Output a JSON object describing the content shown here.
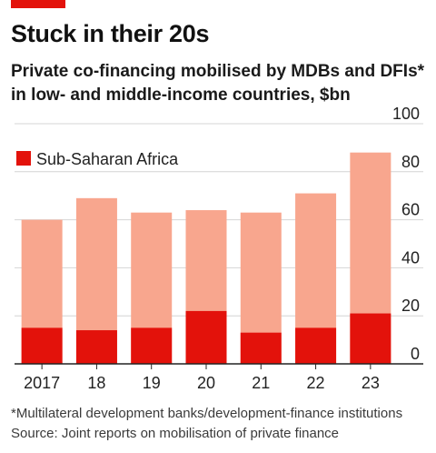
{
  "header": {
    "title": "Stuck in their 20s",
    "subtitle": "Private co-financing mobilised by MDBs and DFIs* in low- and middle-income countries, $bn"
  },
  "footer": {
    "footnote": "*Multilateral development banks/development-finance institutions",
    "source": "Source: Joint reports on mobilisation of private finance"
  },
  "colors": {
    "accent": "#e3120b",
    "total": "#f8a68e",
    "ssa": "#e3120b",
    "grid": "#d4d4d4",
    "axis": "#222222"
  },
  "chart_data": {
    "type": "bar",
    "categories": [
      "2017",
      "18",
      "19",
      "20",
      "21",
      "22",
      "23"
    ],
    "series": [
      {
        "name": "",
        "values": [
          60,
          69,
          63,
          64,
          63,
          71,
          88
        ]
      },
      {
        "name": "Sub-Saharan Africa",
        "values": [
          15,
          14,
          15,
          22,
          13,
          15,
          21
        ]
      }
    ],
    "stacking": "overlay",
    "ylim": [
      0,
      100
    ],
    "yticks": [
      0,
      20,
      40,
      60,
      80,
      100
    ],
    "ytick_position": "right",
    "legend": {
      "position": "top-left"
    },
    "grid": true
  }
}
